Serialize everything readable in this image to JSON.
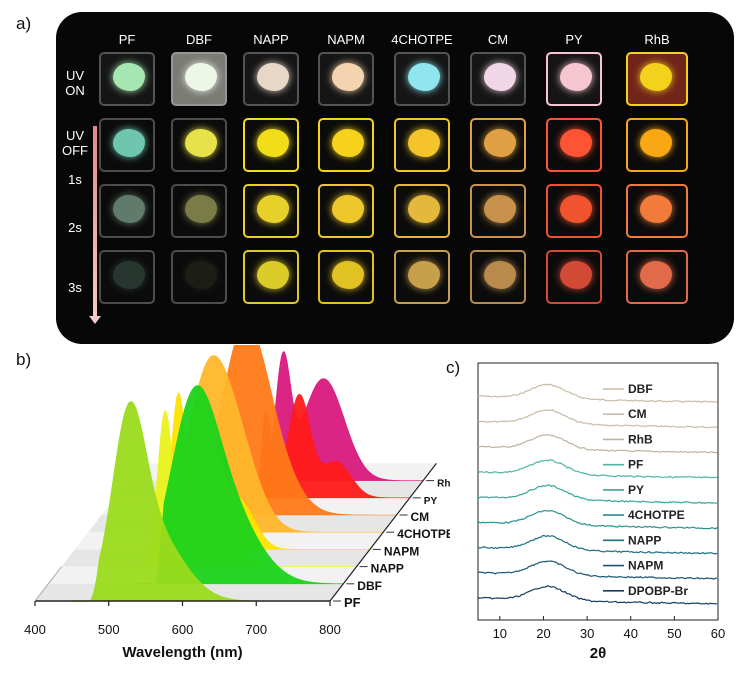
{
  "panel_labels": {
    "a": "a)",
    "b": "b)",
    "c": "c)"
  },
  "panel_a": {
    "columns": [
      "PF",
      "DBF",
      "NAPP",
      "NAPM",
      "4CHOTPE",
      "CM",
      "PY",
      "RhB"
    ],
    "rows": [
      {
        "label": "UV\nON",
        "timer": false
      },
      {
        "label": "UV\nOFF",
        "timer": true
      },
      {
        "label": "1s"
      },
      {
        "label": "2s"
      },
      {
        "label": "3s"
      }
    ],
    "row_labels": {
      "uv_on": "UV\nON",
      "uv_off": "UV\nOFF",
      "t1": "1s",
      "t2": "2s",
      "t3": "3s"
    },
    "colors": {
      "uv_on": [
        "#a6e6b2",
        "#eef6e8",
        "#e8d6c6",
        "#f4d4b0",
        "#8fe6ee",
        "#f0d6e6",
        "#f6c6d0",
        "#f2d21c"
      ],
      "t1": [
        "#6fc6ae",
        "#e8e24a",
        "#f2de18",
        "#f6d21a",
        "#f4c42a",
        "#e0a044",
        "#ff5434",
        "#f7a812"
      ],
      "t2": [
        "#607a6c",
        "#7a7c48",
        "#e8d02a",
        "#eec82a",
        "#e4b83a",
        "#c8924c",
        "#f0542e",
        "#f27a3a"
      ],
      "t3": [
        "#3a5448",
        "#2a2a20",
        "#dccc2a",
        "#e2c222",
        "#c8a04c",
        "#b88a4c",
        "#d24a36",
        "#e06a4a"
      ]
    }
  },
  "chart_data": [
    {
      "type": "line",
      "panel": "b",
      "title": "",
      "xlabel": "Wavelength (nm)",
      "ylabel": "",
      "xlim": [
        400,
        800
      ],
      "xticks": [
        400,
        500,
        600,
        700,
        800
      ],
      "grid": false,
      "legend": "series labels printed at right end of each waterfall trace",
      "series": [
        {
          "name": "PF",
          "color": "#9bdb1c",
          "peaks": [
            {
              "x": 527,
              "y": 1.0,
              "w": 22
            },
            {
              "x": 560,
              "y": 0.45,
              "w": 40
            }
          ],
          "start": 475
        },
        {
          "name": "DBF",
          "color": "#1bd31a",
          "peaks": [
            {
              "x": 595,
              "y": 0.85,
              "w": 30
            },
            {
              "x": 630,
              "y": 0.6,
              "w": 45
            }
          ],
          "start": 545
        },
        {
          "name": "NAPP",
          "color": "#e8f21a",
          "peaks": [
            {
              "x": 540,
              "y": 1.0,
              "w": 10
            },
            {
              "x": 582,
              "y": 0.6,
              "w": 18
            },
            {
              "x": 625,
              "y": 0.25,
              "w": 20
            }
          ],
          "start": 510
        },
        {
          "name": "NAPM",
          "color": "#ffe100",
          "peaks": [
            {
              "x": 540,
              "y": 1.0,
              "w": 10
            },
            {
              "x": 582,
              "y": 0.65,
              "w": 18
            },
            {
              "x": 625,
              "y": 0.3,
              "w": 20
            }
          ],
          "start": 510
        },
        {
          "name": "4CHOTPE",
          "color": "#ffb62b",
          "peaks": [
            {
              "x": 560,
              "y": 0.9,
              "w": 28
            },
            {
              "x": 600,
              "y": 0.55,
              "w": 30
            }
          ],
          "start": 505
        },
        {
          "name": "CM",
          "color": "#ff7a17",
          "peaks": [
            {
              "x": 590,
              "y": 0.95,
              "w": 30
            },
            {
              "x": 620,
              "y": 0.45,
              "w": 35
            }
          ],
          "start": 530
        },
        {
          "name": "PY",
          "color": "#ff1a1a",
          "peaks": [
            {
              "x": 605,
              "y": 0.7,
              "w": 8
            },
            {
              "x": 650,
              "y": 0.85,
              "w": 15
            },
            {
              "x": 700,
              "y": 0.3,
              "w": 20
            }
          ],
          "start": 590
        },
        {
          "name": "RhB",
          "color": "#d8197e",
          "peaks": [
            {
              "x": 610,
              "y": 0.95,
              "w": 10
            },
            {
              "x": 665,
              "y": 0.85,
              "w": 28
            }
          ],
          "start": 580
        }
      ]
    },
    {
      "type": "line",
      "panel": "c",
      "title": "",
      "xlabel": "2θ",
      "ylabel": "",
      "xlim": [
        5,
        60
      ],
      "xticks": [
        10,
        20,
        30,
        40,
        50,
        60
      ],
      "grid": false,
      "legend": "inside, right side, one entry per trace",
      "series": [
        {
          "name": "DBF",
          "color": "#c8bca6"
        },
        {
          "name": "CM",
          "color": "#c8bca6"
        },
        {
          "name": "RhB",
          "color": "#bfb39c"
        },
        {
          "name": "PF",
          "color": "#52b3a6"
        },
        {
          "name": "PY",
          "color": "#3aa69a"
        },
        {
          "name": "4CHOTPE",
          "color": "#2a8f8e"
        },
        {
          "name": "NAPP",
          "color": "#1e6f82"
        },
        {
          "name": "NAPM",
          "color": "#1c5676"
        },
        {
          "name": "DPOBP-Br",
          "color": "#173e60"
        }
      ],
      "peak_2theta": 21
    }
  ]
}
